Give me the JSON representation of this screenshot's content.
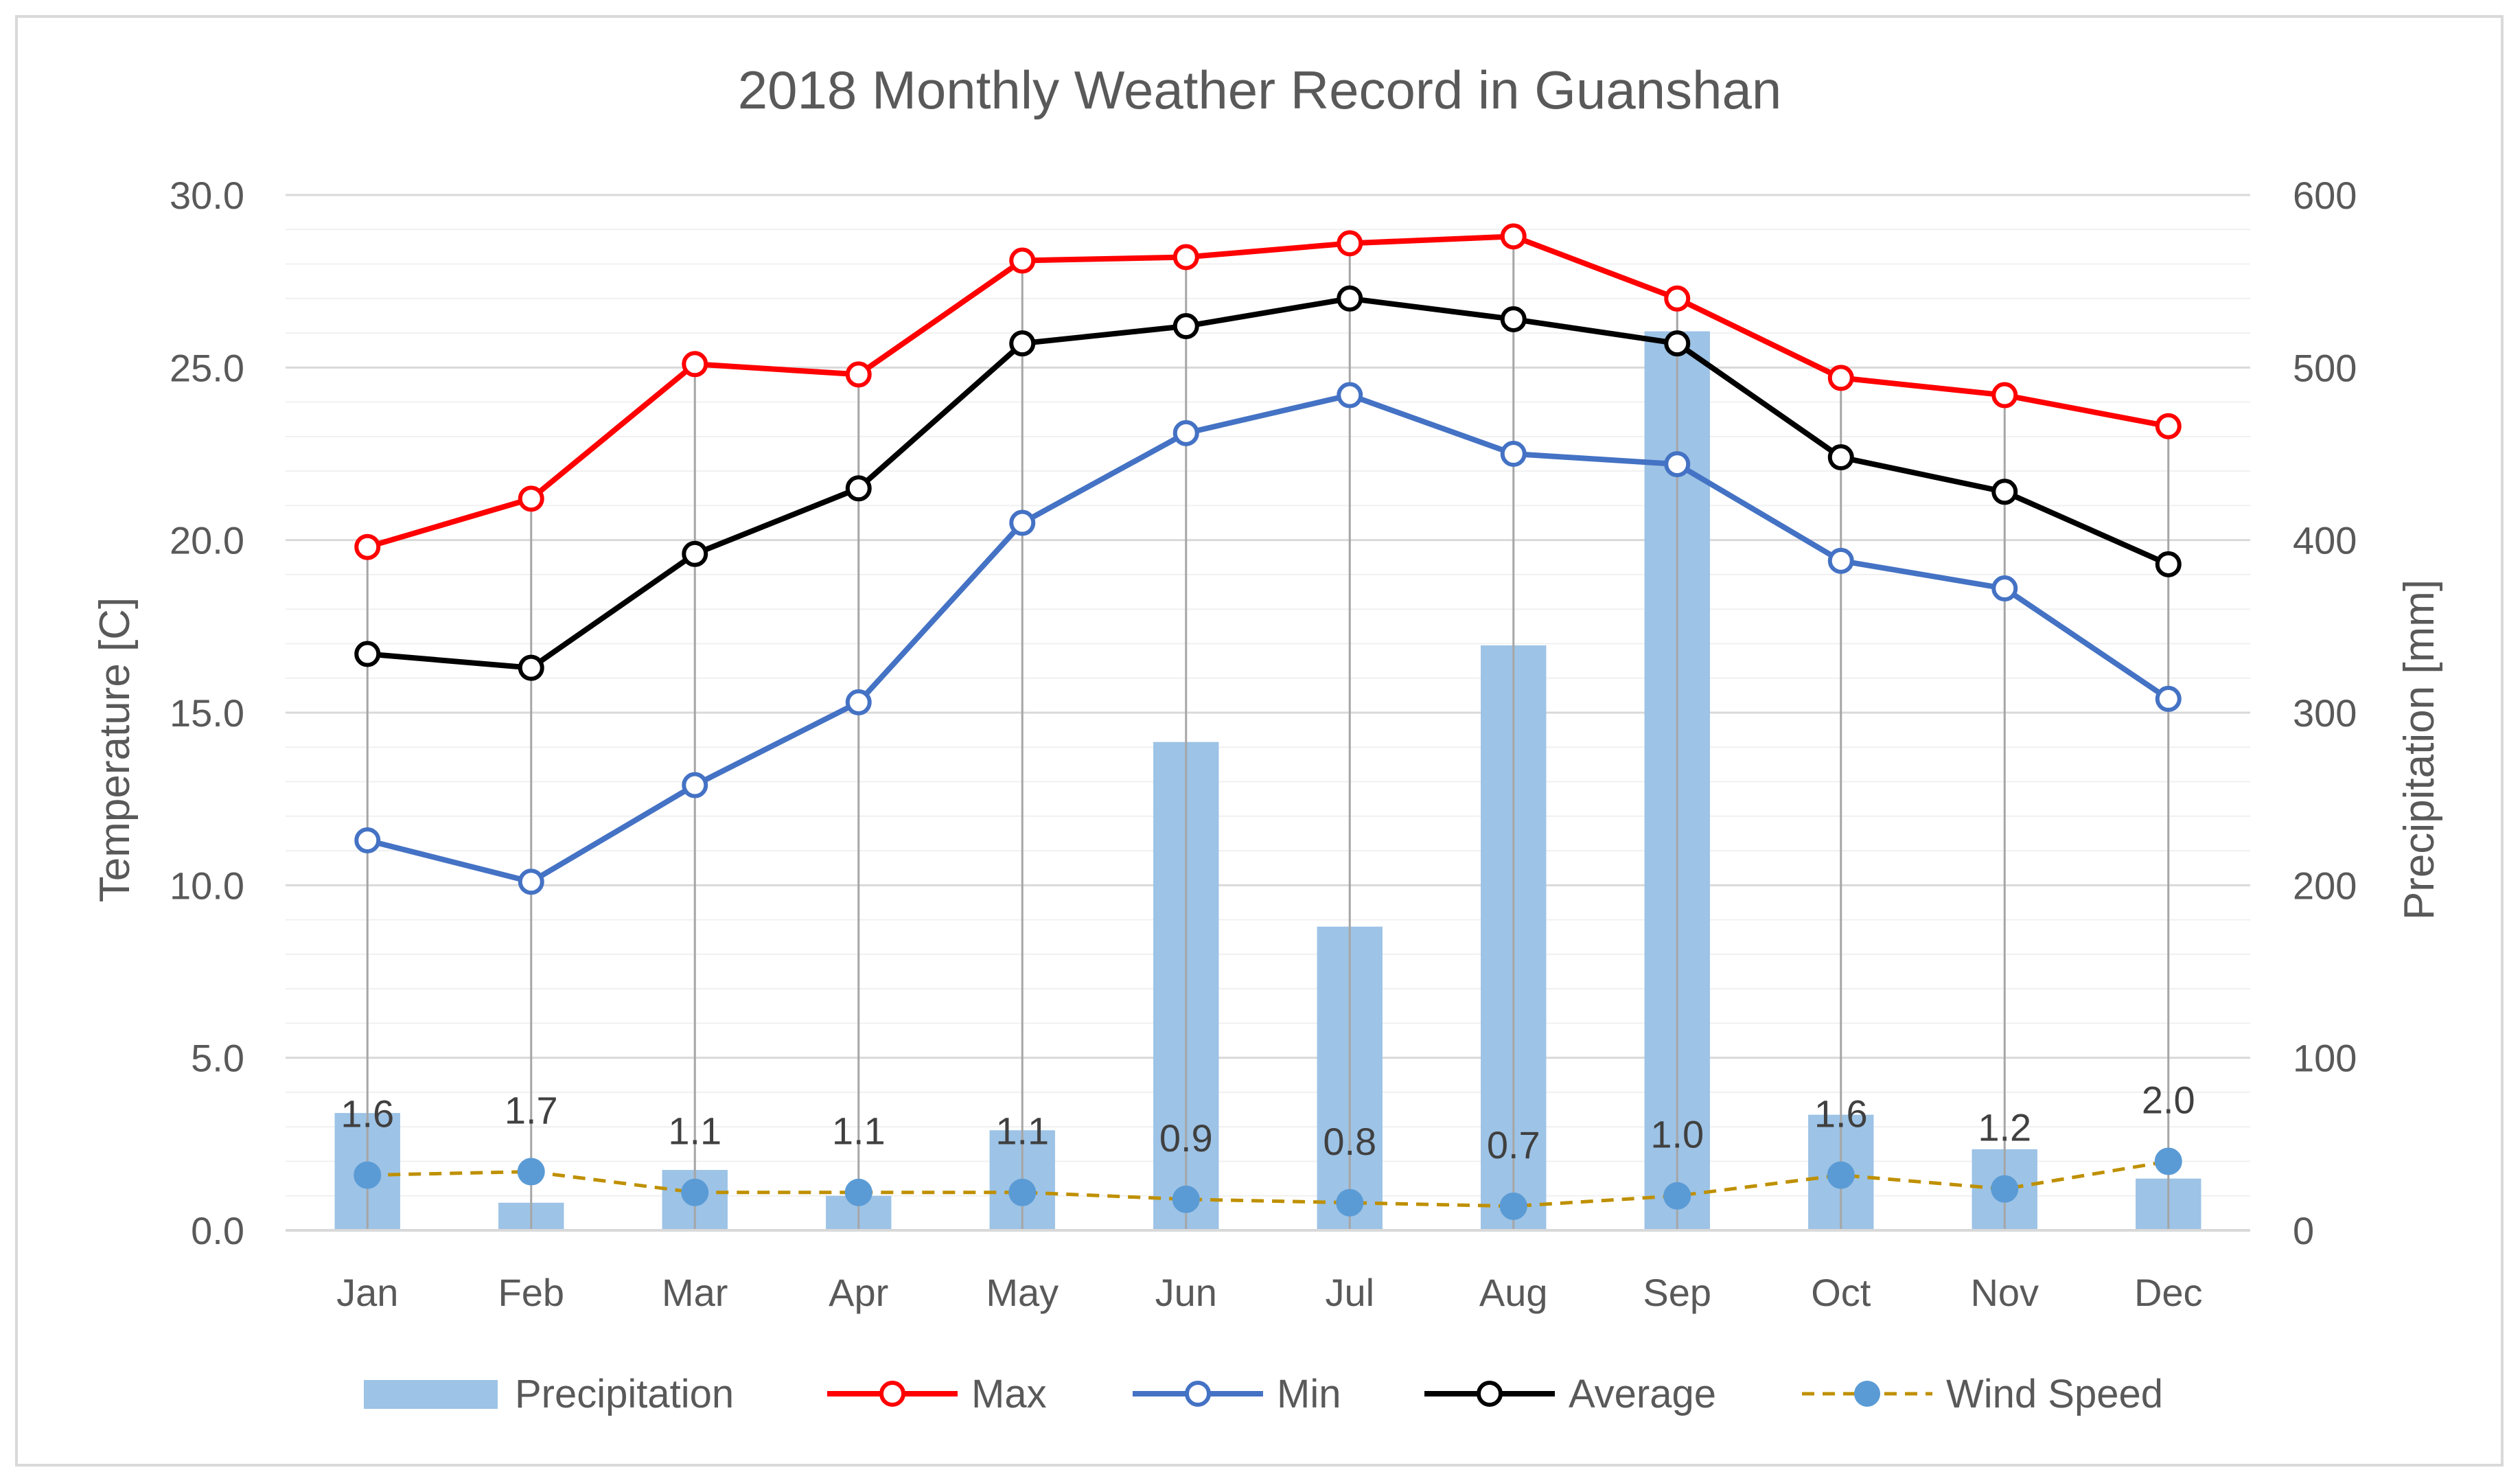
{
  "chart_data": {
    "type": "combo",
    "title": "2018 Monthly Weather Record in Guanshan",
    "categories": [
      "Jan",
      "Feb",
      "Mar",
      "Apr",
      "May",
      "Jun",
      "Jul",
      "Aug",
      "Sep",
      "Oct",
      "Nov",
      "Dec"
    ],
    "y_left": {
      "label": "Temperature [C]",
      "min": 0,
      "max": 30,
      "major": 5,
      "tick_labels": [
        "0.0",
        "5.0",
        "10.0",
        "15.0",
        "20.0",
        "25.0",
        "30.0"
      ]
    },
    "y_right": {
      "label": "Precipitation [mm]",
      "min": 0,
      "max": 600,
      "major": 100,
      "tick_labels": [
        "0",
        "100",
        "200",
        "300",
        "400",
        "500",
        "600"
      ]
    },
    "gridlines": "major-and-minor",
    "legend_position": "bottom",
    "series": [
      {
        "name": "Precipitation",
        "type": "bar",
        "axis": "right",
        "color": "#9dc3e6",
        "values": [
          68,
          16,
          35,
          20,
          58,
          283,
          176,
          339,
          521,
          67,
          47,
          30
        ]
      },
      {
        "name": "Max",
        "type": "line",
        "axis": "left",
        "color": "#ff0000",
        "marker": "open-circle",
        "values": [
          19.8,
          21.2,
          25.1,
          24.8,
          28.1,
          28.2,
          28.6,
          28.8,
          27.0,
          24.7,
          24.2,
          23.3
        ]
      },
      {
        "name": "Min",
        "type": "line",
        "axis": "left",
        "color": "#4472c4",
        "marker": "open-circle",
        "values": [
          11.3,
          10.1,
          12.9,
          15.3,
          20.5,
          23.1,
          24.2,
          22.5,
          22.2,
          19.4,
          18.6,
          15.4
        ]
      },
      {
        "name": "Average",
        "type": "line",
        "axis": "left",
        "color": "#000000",
        "marker": "open-circle",
        "values": [
          16.7,
          16.3,
          19.6,
          21.5,
          25.7,
          26.2,
          27.0,
          26.4,
          25.7,
          22.4,
          21.4,
          19.3
        ]
      },
      {
        "name": "Wind Speed",
        "type": "line",
        "axis": "left",
        "color": "#bf9000",
        "marker_color": "#5b9bd5",
        "line_style": "dashed",
        "marker": "filled-circle",
        "values": [
          1.6,
          1.7,
          1.1,
          1.1,
          1.1,
          0.9,
          0.8,
          0.7,
          1.0,
          1.6,
          1.2,
          2.0
        ],
        "data_labels": [
          "1.6",
          "1.7",
          "1.1",
          "1.1",
          "1.1",
          "0.9",
          "0.8",
          "0.7",
          "1.0",
          "1.6",
          "1.2",
          "2.0"
        ]
      }
    ]
  }
}
